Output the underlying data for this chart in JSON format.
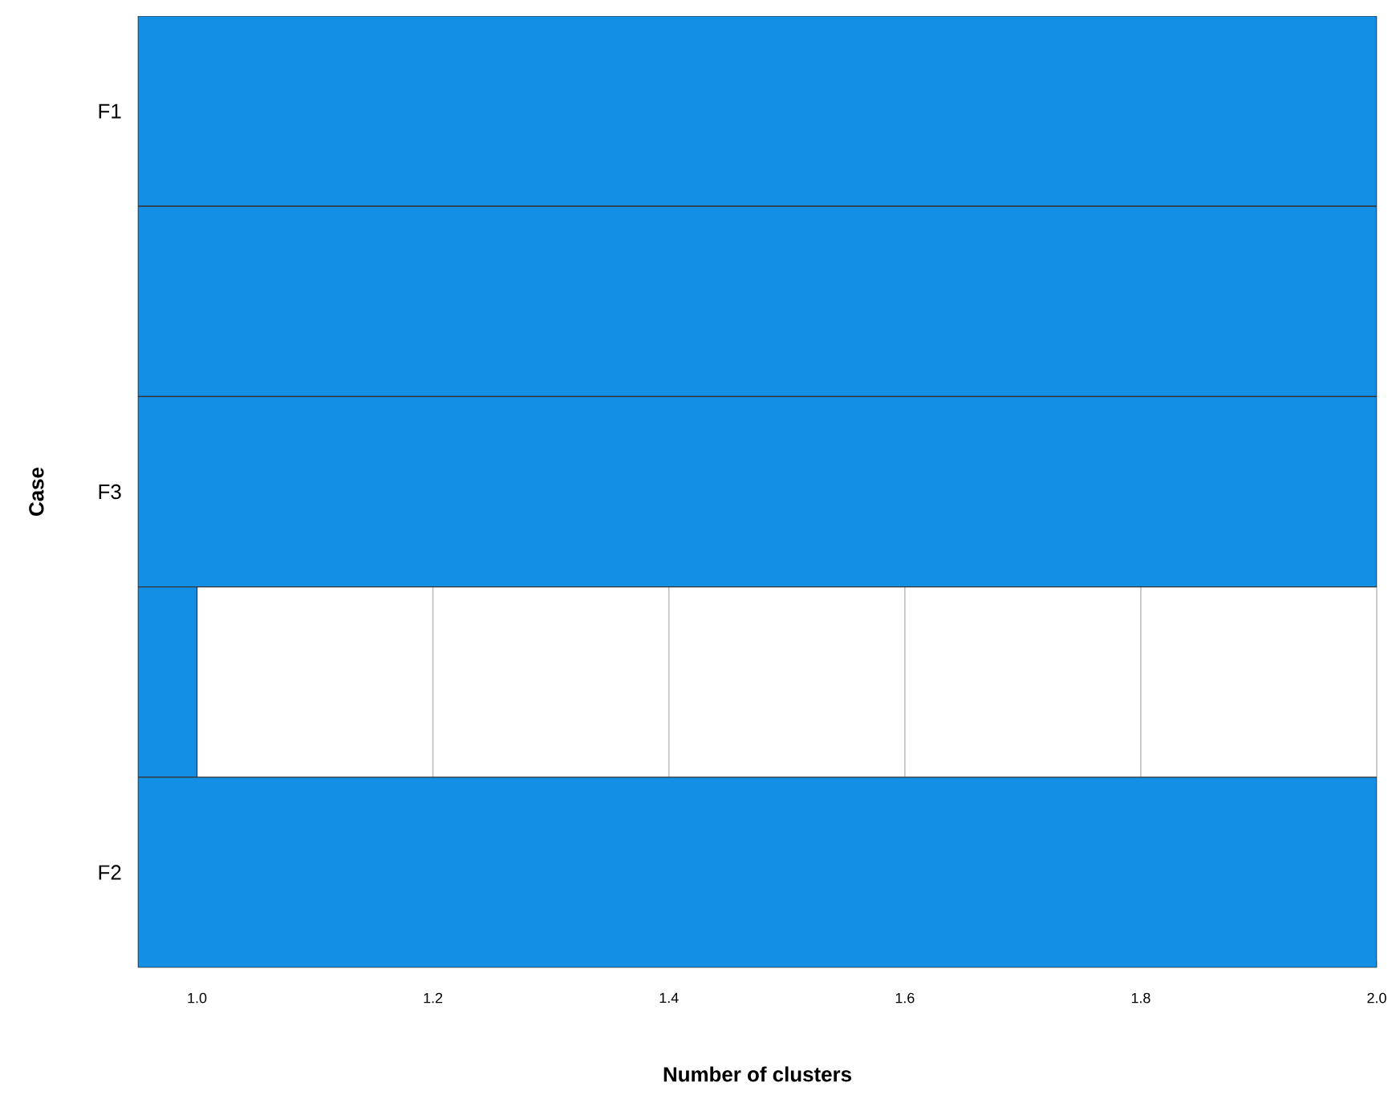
{
  "chart_data": {
    "type": "bar",
    "orientation": "horizontal",
    "xlabel": "Number of clusters",
    "ylabel": "Case",
    "categories": [
      "F1",
      null,
      "F3",
      null,
      "F2"
    ],
    "series": [
      {
        "color": "#148fe6",
        "values": [
          2.0,
          2.0,
          2.0,
          1.0,
          2.0
        ]
      }
    ],
    "xlim": [
      0.95,
      2.0
    ],
    "xticks": [
      {
        "value": 1.0,
        "label": "1.0"
      },
      {
        "value": 1.2,
        "label": "1.2"
      },
      {
        "value": 1.4,
        "label": "1.4"
      },
      {
        "value": 1.6,
        "label": "1.6"
      },
      {
        "value": 1.8,
        "label": "1.8"
      },
      {
        "value": 2.0,
        "label": "2.0"
      }
    ],
    "grid": "x"
  }
}
